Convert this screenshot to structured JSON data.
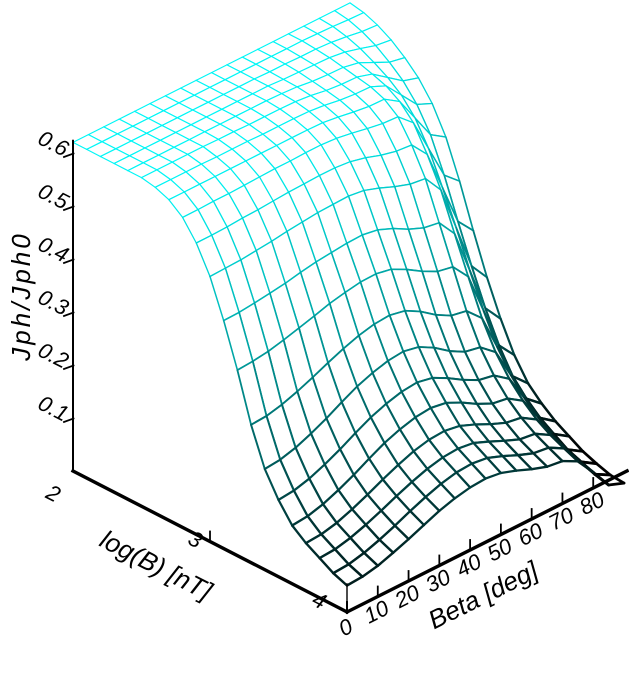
{
  "chart_data": {
    "type": "surface",
    "title": "",
    "xlabel": "Beta [deg]",
    "ylabel": "log(B) [nT]",
    "zlabel": "Jph/Jph0",
    "x_tick_labels": [
      "0",
      "10",
      "20",
      "30",
      "40",
      "50",
      "60",
      "70",
      "80"
    ],
    "x_tick_values": [
      0,
      10,
      20,
      30,
      40,
      50,
      60,
      70,
      80
    ],
    "y_tick_labels": [
      "2",
      "3",
      "4"
    ],
    "y_tick_values": [
      2,
      3,
      4
    ],
    "z_tick_labels": [
      "0.1",
      "0.2",
      "0.3",
      "0.4",
      "0.5",
      "0.6"
    ],
    "z_tick_values": [
      0.1,
      0.2,
      0.3,
      0.4,
      0.5,
      0.6
    ],
    "x_range_deg": [
      0,
      90
    ],
    "y_range_logB": [
      2,
      4
    ],
    "z_range": [
      0,
      0.62
    ],
    "grid_on": false,
    "legend": null,
    "colors": {
      "mesh_high": "#00f6f6",
      "mesh_low": "#000000",
      "axis": "#000000",
      "background": "#ffffff"
    },
    "beta_deg": [
      0,
      5,
      10,
      15,
      20,
      25,
      30,
      35,
      40,
      45,
      50,
      55,
      60,
      65,
      70,
      75,
      80,
      85,
      90
    ],
    "logB_nT": [
      2.0,
      2.1,
      2.2,
      2.3,
      2.4,
      2.5,
      2.6,
      2.7,
      2.8,
      2.9,
      3.0,
      3.1,
      3.2,
      3.3,
      3.4,
      3.5,
      3.6,
      3.7,
      3.8,
      3.9,
      4.0
    ],
    "jph_ratio_grid": [
      [
        0.62,
        0.62,
        0.62,
        0.62,
        0.62,
        0.62,
        0.62,
        0.62,
        0.62,
        0.62,
        0.62,
        0.62,
        0.62,
        0.62,
        0.62,
        0.62,
        0.62,
        0.62,
        0.62
      ],
      [
        0.62,
        0.62,
        0.62,
        0.62,
        0.62,
        0.62,
        0.62,
        0.62,
        0.62,
        0.62,
        0.62,
        0.62,
        0.62,
        0.62,
        0.62,
        0.619,
        0.618,
        0.616,
        0.615
      ],
      [
        0.62,
        0.62,
        0.62,
        0.62,
        0.62,
        0.62,
        0.62,
        0.62,
        0.62,
        0.62,
        0.62,
        0.619,
        0.619,
        0.618,
        0.618,
        0.616,
        0.612,
        0.607,
        0.605
      ],
      [
        0.62,
        0.62,
        0.62,
        0.62,
        0.62,
        0.62,
        0.62,
        0.62,
        0.62,
        0.62,
        0.62,
        0.618,
        0.617,
        0.616,
        0.615,
        0.611,
        0.603,
        0.594,
        0.59
      ],
      [
        0.62,
        0.62,
        0.62,
        0.62,
        0.62,
        0.62,
        0.62,
        0.62,
        0.62,
        0.62,
        0.619,
        0.617,
        0.613,
        0.611,
        0.61,
        0.604,
        0.59,
        0.576,
        0.57
      ],
      [
        0.62,
        0.62,
        0.62,
        0.62,
        0.62,
        0.619,
        0.619,
        0.618,
        0.618,
        0.618,
        0.617,
        0.614,
        0.609,
        0.606,
        0.605,
        0.596,
        0.575,
        0.554,
        0.545
      ],
      [
        0.615,
        0.615,
        0.615,
        0.615,
        0.614,
        0.614,
        0.614,
        0.613,
        0.613,
        0.613,
        0.612,
        0.609,
        0.604,
        0.601,
        0.6,
        0.587,
        0.555,
        0.523,
        0.51
      ],
      [
        0.605,
        0.605,
        0.605,
        0.605,
        0.605,
        0.605,
        0.605,
        0.605,
        0.605,
        0.605,
        0.604,
        0.6,
        0.595,
        0.591,
        0.59,
        0.571,
        0.525,
        0.479,
        0.46
      ],
      [
        0.585,
        0.585,
        0.586,
        0.586,
        0.587,
        0.588,
        0.589,
        0.589,
        0.59,
        0.59,
        0.588,
        0.583,
        0.577,
        0.572,
        0.57,
        0.544,
        0.48,
        0.416,
        0.39
      ],
      [
        0.55,
        0.55,
        0.551,
        0.553,
        0.554,
        0.556,
        0.558,
        0.559,
        0.56,
        0.56,
        0.557,
        0.55,
        0.54,
        0.533,
        0.53,
        0.498,
        0.42,
        0.342,
        0.31
      ],
      [
        0.5,
        0.501,
        0.502,
        0.505,
        0.508,
        0.512,
        0.515,
        0.518,
        0.519,
        0.52,
        0.516,
        0.506,
        0.494,
        0.484,
        0.48,
        0.444,
        0.358,
        0.271,
        0.235
      ],
      [
        0.43,
        0.431,
        0.434,
        0.438,
        0.442,
        0.448,
        0.453,
        0.456,
        0.459,
        0.46,
        0.455,
        0.443,
        0.427,
        0.415,
        0.41,
        0.375,
        0.29,
        0.205,
        0.17
      ],
      [
        0.35,
        0.352,
        0.356,
        0.363,
        0.371,
        0.379,
        0.388,
        0.394,
        0.399,
        0.4,
        0.394,
        0.379,
        0.361,
        0.346,
        0.34,
        0.307,
        0.228,
        0.148,
        0.115
      ],
      [
        0.26,
        0.262,
        0.269,
        0.279,
        0.291,
        0.304,
        0.316,
        0.326,
        0.333,
        0.335,
        0.329,
        0.313,
        0.292,
        0.276,
        0.27,
        0.242,
        0.173,
        0.103,
        0.075
      ],
      [
        0.19,
        0.193,
        0.201,
        0.213,
        0.227,
        0.243,
        0.258,
        0.269,
        0.277,
        0.28,
        0.274,
        0.258,
        0.237,
        0.221,
        0.215,
        0.191,
        0.133,
        0.074,
        0.05
      ],
      [
        0.145,
        0.148,
        0.156,
        0.168,
        0.182,
        0.198,
        0.213,
        0.224,
        0.232,
        0.235,
        0.229,
        0.214,
        0.196,
        0.181,
        0.175,
        0.154,
        0.103,
        0.051,
        0.03
      ],
      [
        0.11,
        0.113,
        0.121,
        0.133,
        0.147,
        0.163,
        0.178,
        0.189,
        0.197,
        0.2,
        0.195,
        0.181,
        0.164,
        0.15,
        0.145,
        0.126,
        0.08,
        0.034,
        0.015
      ],
      [
        0.09,
        0.092,
        0.099,
        0.11,
        0.123,
        0.137,
        0.15,
        0.161,
        0.168,
        0.17,
        0.165,
        0.153,
        0.139,
        0.127,
        0.122,
        0.104,
        0.061,
        0.018,
        0.0
      ],
      [
        0.075,
        0.077,
        0.084,
        0.094,
        0.106,
        0.119,
        0.131,
        0.141,
        0.148,
        0.15,
        0.146,
        0.134,
        0.121,
        0.109,
        0.105,
        0.088,
        0.048,
        0.008,
        -0.01
      ],
      [
        0.06,
        0.062,
        0.069,
        0.079,
        0.091,
        0.104,
        0.116,
        0.126,
        0.133,
        0.135,
        0.131,
        0.12,
        0.107,
        0.096,
        0.092,
        0.076,
        0.037,
        -0.002,
        -0.018
      ],
      [
        0.05,
        0.052,
        0.058,
        0.068,
        0.079,
        0.091,
        0.103,
        0.112,
        0.118,
        0.12,
        0.116,
        0.106,
        0.094,
        0.084,
        0.08,
        0.065,
        0.03,
        -0.009,
        -0.02
      ]
    ]
  }
}
